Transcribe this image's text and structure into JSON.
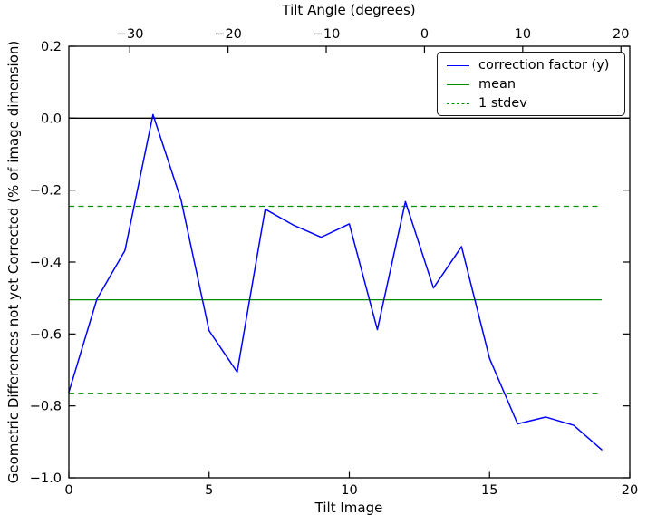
{
  "chart_data": {
    "type": "line",
    "xlabel": "Tilt Image",
    "ylabel": "Geometric Differences not yet Corrected (% of image dimension)",
    "xlim": [
      0,
      20
    ],
    "ylim": [
      -1.0,
      0.2
    ],
    "x_ticks": [
      0,
      5,
      10,
      15,
      20
    ],
    "y_ticks": [
      0.2,
      0.0,
      -0.2,
      -0.4,
      -0.6,
      -0.8,
      -1.0
    ],
    "top_axis": {
      "label": "Tilt Angle (degrees)",
      "lim": [
        -36.2,
        20.9
      ],
      "ticks": [
        -30,
        -20,
        -10,
        0,
        10,
        20
      ]
    },
    "x": [
      0,
      1,
      2,
      3,
      4,
      5,
      6,
      7,
      8,
      9,
      10,
      11,
      12,
      13,
      14,
      15,
      16,
      17,
      18,
      19
    ],
    "series": [
      {
        "name": "correction factor (y)",
        "color": "#0000ff",
        "values": [
          -0.762,
          -0.503,
          -0.368,
          0.01,
          -0.227,
          -0.591,
          -0.706,
          -0.253,
          -0.297,
          -0.331,
          -0.294,
          -0.588,
          -0.232,
          -0.472,
          -0.357,
          -0.668,
          -0.85,
          -0.831,
          -0.854,
          -0.922
        ]
      }
    ],
    "reference_lines": {
      "zero": {
        "value": 0.0,
        "color": "#000000"
      },
      "mean": {
        "label": "mean",
        "value": -0.505,
        "color": "#008f00",
        "style": "solid"
      },
      "stdev": {
        "label": "1 stdev",
        "value": 0.26,
        "upper": -0.245,
        "lower": -0.765,
        "color": "#008f00",
        "style": "dashed"
      }
    },
    "legend": {
      "position": "upper right",
      "entries": [
        {
          "label": "correction factor (y)",
          "color": "#0000ff",
          "style": "solid"
        },
        {
          "label": "mean",
          "color": "#008f00",
          "style": "solid"
        },
        {
          "label": "1 stdev",
          "color": "#008f00",
          "style": "dashed"
        }
      ]
    },
    "grid": false
  }
}
